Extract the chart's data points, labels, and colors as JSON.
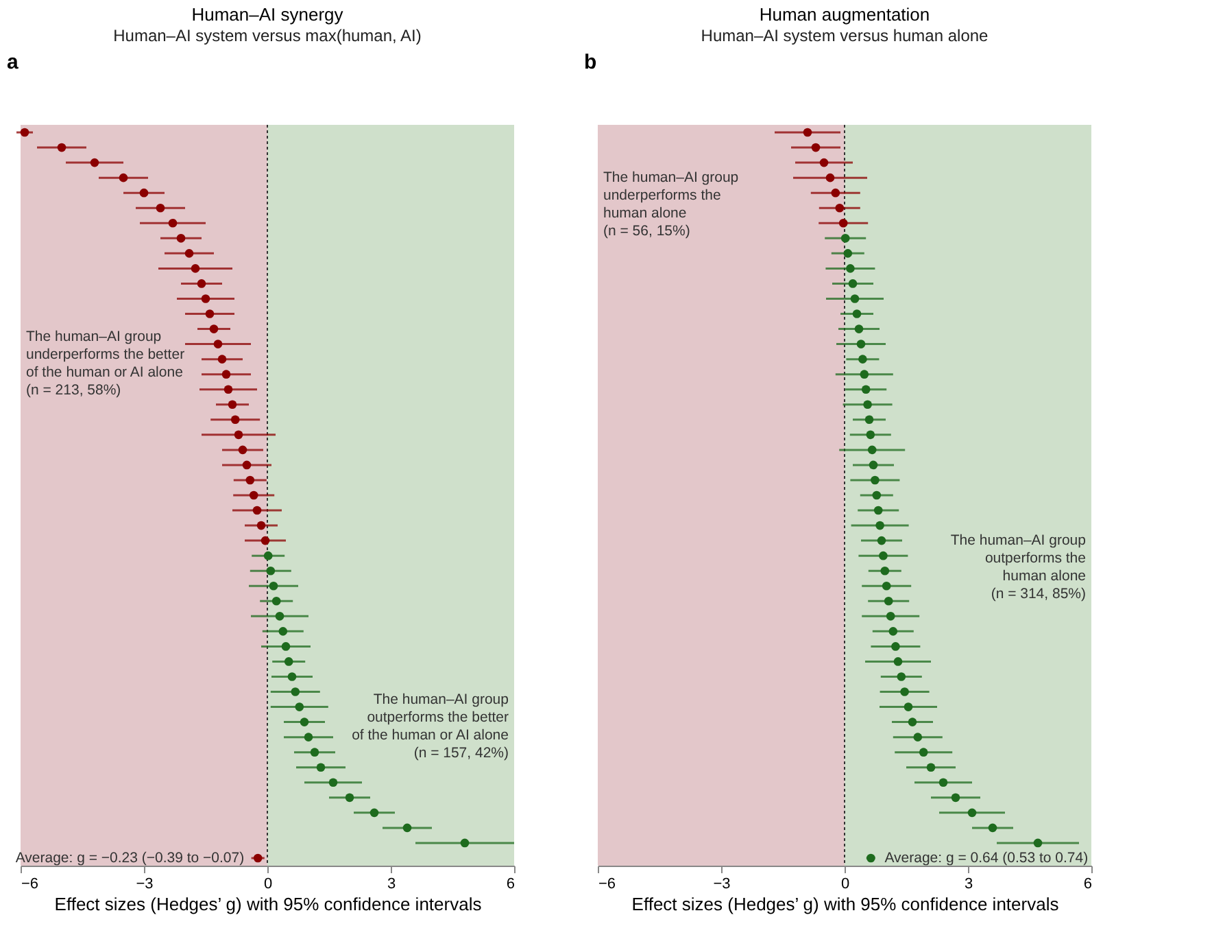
{
  "chart_data": [
    {
      "type": "scatter",
      "orientation": "horizontal",
      "title": "Human–AI synergy",
      "subtitle": "Human–AI system versus max(human, AI)",
      "xlabel": "Effect sizes (Hedges’ g) with 95% confidence intervals",
      "xlim": [
        -6,
        6
      ],
      "xticks": [
        -6,
        -3,
        0,
        3,
        6
      ],
      "tick_labels": "x",
      "marker": "circle",
      "categories": [
        null,
        null,
        null,
        null,
        null,
        null,
        null,
        null,
        null,
        null,
        null,
        null,
        null,
        null,
        null,
        null,
        null,
        null,
        null,
        null,
        null,
        null,
        null,
        null,
        null,
        null,
        null,
        null,
        null,
        null,
        null,
        null,
        null,
        null,
        null,
        null,
        null,
        null,
        null,
        null,
        null,
        null,
        null,
        null,
        null,
        null,
        null,
        null,
        null
      ],
      "series": [
        {
          "color": "#8b0000",
          "values": [
            -5.9,
            -5.0,
            -4.2,
            -3.5,
            -3.0,
            -2.6,
            -2.3,
            -2.1,
            -1.9,
            -1.75,
            -1.6,
            -1.5,
            -1.4,
            -1.3,
            -1.2,
            -1.1,
            -1.0,
            -0.95,
            -0.85,
            -0.78,
            -0.7,
            -0.6,
            -0.5,
            -0.42,
            -0.33,
            -0.25,
            -0.15,
            -0.05,
            null,
            null,
            null,
            null,
            null,
            null,
            null,
            null,
            null,
            null,
            null,
            null,
            null,
            null,
            null,
            null,
            null,
            null,
            null,
            null,
            null
          ],
          "errors": [
            0.2,
            0.6,
            0.7,
            0.6,
            0.5,
            0.6,
            0.8,
            0.5,
            0.6,
            0.9,
            0.5,
            0.7,
            0.6,
            0.4,
            0.8,
            0.5,
            0.6,
            0.7,
            0.4,
            0.6,
            0.9,
            0.5,
            0.6,
            0.4,
            0.5,
            0.6,
            0.4,
            0.5,
            null,
            null,
            null,
            null,
            null,
            null,
            null,
            null,
            null,
            null,
            null,
            null,
            null,
            null,
            null,
            null,
            null,
            null,
            null,
            null,
            null
          ]
        },
        {
          "color": "#1e6b1e",
          "values": [
            null,
            null,
            null,
            null,
            null,
            null,
            null,
            null,
            null,
            null,
            null,
            null,
            null,
            null,
            null,
            null,
            null,
            null,
            null,
            null,
            null,
            null,
            null,
            null,
            null,
            null,
            null,
            null,
            0.02,
            0.08,
            0.15,
            0.22,
            0.3,
            0.38,
            0.45,
            0.52,
            0.6,
            0.68,
            0.78,
            0.9,
            1.0,
            1.15,
            1.3,
            1.6,
            2.0,
            2.6,
            3.4,
            4.8,
            null
          ],
          "errors": [
            null,
            null,
            null,
            null,
            null,
            null,
            null,
            null,
            null,
            null,
            null,
            null,
            null,
            null,
            null,
            null,
            null,
            null,
            null,
            null,
            null,
            null,
            null,
            null,
            null,
            null,
            null,
            null,
            0.4,
            0.5,
            0.6,
            0.4,
            0.7,
            0.5,
            0.6,
            0.4,
            0.5,
            0.6,
            0.7,
            0.5,
            0.6,
            0.5,
            0.6,
            0.7,
            0.5,
            0.5,
            0.6,
            1.2,
            null
          ]
        },
        {
          "color": "#8b0000",
          "values": [
            null,
            null,
            null,
            null,
            null,
            null,
            null,
            null,
            null,
            null,
            null,
            null,
            null,
            null,
            null,
            null,
            null,
            null,
            null,
            null,
            null,
            null,
            null,
            null,
            null,
            null,
            null,
            null,
            null,
            null,
            null,
            null,
            null,
            null,
            null,
            null,
            null,
            null,
            null,
            null,
            null,
            null,
            null,
            null,
            null,
            null,
            null,
            null,
            -0.23
          ],
          "errors": [
            null,
            null,
            null,
            null,
            null,
            null,
            null,
            null,
            null,
            null,
            null,
            null,
            null,
            null,
            null,
            null,
            null,
            null,
            null,
            null,
            null,
            null,
            null,
            null,
            null,
            null,
            null,
            null,
            null,
            null,
            null,
            null,
            null,
            null,
            null,
            null,
            null,
            null,
            null,
            null,
            null,
            null,
            null,
            null,
            null,
            null,
            null,
            null,
            [
              -0.39,
              -0.07
            ]
          ]
        }
      ],
      "bands": [
        {
          "axis": "x",
          "from": -6,
          "to": 0,
          "color": "#e3c7ca"
        },
        {
          "axis": "x",
          "from": 0,
          "to": 6,
          "color": "#cfe0cb"
        }
      ],
      "ref_lines": [
        {
          "axis": "x",
          "value": 0,
          "line_style": "dotted",
          "color": "#333333"
        }
      ],
      "annotations": [
        "a",
        "The human–AI group\nunderperforms the better\nof the human or AI alone\n(n = 213, 58%)",
        "The human–AI group\noutperforms the better\nof the human or AI alone\n(n = 157, 42%)",
        "Average: g = −0.23 (−0.39 to −0.07)"
      ]
    },
    {
      "type": "scatter",
      "orientation": "horizontal",
      "title": "Human augmentation",
      "subtitle": "Human–AI system versus human alone",
      "xlabel": "Effect sizes (Hedges’ g) with 95% confidence intervals",
      "xlim": [
        -6,
        6
      ],
      "xticks": [
        -6,
        -3,
        0,
        3,
        6
      ],
      "tick_labels": "x",
      "marker": "circle",
      "categories": [
        null,
        null,
        null,
        null,
        null,
        null,
        null,
        null,
        null,
        null,
        null,
        null,
        null,
        null,
        null,
        null,
        null,
        null,
        null,
        null,
        null,
        null,
        null,
        null,
        null,
        null,
        null,
        null,
        null,
        null,
        null,
        null,
        null,
        null,
        null,
        null,
        null,
        null,
        null,
        null,
        null,
        null,
        null,
        null,
        null,
        null,
        null,
        null,
        null
      ],
      "series": [
        {
          "color": "#8b0000",
          "values": [
            -0.9,
            -0.7,
            -0.5,
            -0.35,
            -0.22,
            -0.12,
            -0.03,
            null,
            null,
            null,
            null,
            null,
            null,
            null,
            null,
            null,
            null,
            null,
            null,
            null,
            null,
            null,
            null,
            null,
            null,
            null,
            null,
            null,
            null,
            null,
            null,
            null,
            null,
            null,
            null,
            null,
            null,
            null,
            null,
            null,
            null,
            null,
            null,
            null,
            null,
            null,
            null,
            null,
            null
          ],
          "errors": [
            0.8,
            0.6,
            0.7,
            0.9,
            0.6,
            0.5,
            0.6,
            null,
            null,
            null,
            null,
            null,
            null,
            null,
            null,
            null,
            null,
            null,
            null,
            null,
            null,
            null,
            null,
            null,
            null,
            null,
            null,
            null,
            null,
            null,
            null,
            null,
            null,
            null,
            null,
            null,
            null,
            null,
            null,
            null,
            null,
            null,
            null,
            null,
            null,
            null,
            null,
            null,
            null
          ]
        },
        {
          "color": "#1e6b1e",
          "values": [
            null,
            null,
            null,
            null,
            null,
            null,
            null,
            0.02,
            0.08,
            0.14,
            0.2,
            0.25,
            0.3,
            0.35,
            0.4,
            0.44,
            0.48,
            0.52,
            0.56,
            0.6,
            0.63,
            0.67,
            0.7,
            0.74,
            0.78,
            0.82,
            0.86,
            0.9,
            0.94,
            0.98,
            1.02,
            1.07,
            1.12,
            1.18,
            1.24,
            1.3,
            1.38,
            1.46,
            1.55,
            1.65,
            1.78,
            1.92,
            2.1,
            2.4,
            2.7,
            3.1,
            3.6,
            4.7,
            null
          ],
          "errors": [
            null,
            null,
            null,
            null,
            null,
            null,
            null,
            0.5,
            0.4,
            0.6,
            0.5,
            0.7,
            0.4,
            0.5,
            0.6,
            0.4,
            0.7,
            0.5,
            0.6,
            0.4,
            0.5,
            0.8,
            0.5,
            0.6,
            0.4,
            0.5,
            0.7,
            0.5,
            0.6,
            0.4,
            0.6,
            0.5,
            0.7,
            0.5,
            0.6,
            0.8,
            0.5,
            0.6,
            0.7,
            0.5,
            0.6,
            0.7,
            0.6,
            0.7,
            0.6,
            0.8,
            0.5,
            1.0,
            null
          ]
        },
        {
          "color": "#1e6b1e",
          "values": [
            null,
            null,
            null,
            null,
            null,
            null,
            null,
            null,
            null,
            null,
            null,
            null,
            null,
            null,
            null,
            null,
            null,
            null,
            null,
            null,
            null,
            null,
            null,
            null,
            null,
            null,
            null,
            null,
            null,
            null,
            null,
            null,
            null,
            null,
            null,
            null,
            null,
            null,
            null,
            null,
            null,
            null,
            null,
            null,
            null,
            null,
            null,
            null,
            0.64
          ],
          "errors": [
            null,
            null,
            null,
            null,
            null,
            null,
            null,
            null,
            null,
            null,
            null,
            null,
            null,
            null,
            null,
            null,
            null,
            null,
            null,
            null,
            null,
            null,
            null,
            null,
            null,
            null,
            null,
            null,
            null,
            null,
            null,
            null,
            null,
            null,
            null,
            null,
            null,
            null,
            null,
            null,
            null,
            null,
            null,
            null,
            null,
            null,
            null,
            null,
            [
              0.53,
              0.74
            ]
          ]
        }
      ],
      "bands": [
        {
          "axis": "x",
          "from": -6,
          "to": 0,
          "color": "#e3c7ca"
        },
        {
          "axis": "x",
          "from": 0,
          "to": 6,
          "color": "#cfe0cb"
        }
      ],
      "ref_lines": [
        {
          "axis": "x",
          "value": 0,
          "line_style": "dotted",
          "color": "#333333"
        }
      ],
      "annotations": [
        "b",
        "The human–AI group\nunderperforms the\nhuman alone\n(n = 56, 15%)",
        "The human–AI group\noutperforms the\nhuman alone\n(n = 314, 85%)",
        "Average: g = 0.64 (0.53 to 0.74)"
      ]
    }
  ]
}
